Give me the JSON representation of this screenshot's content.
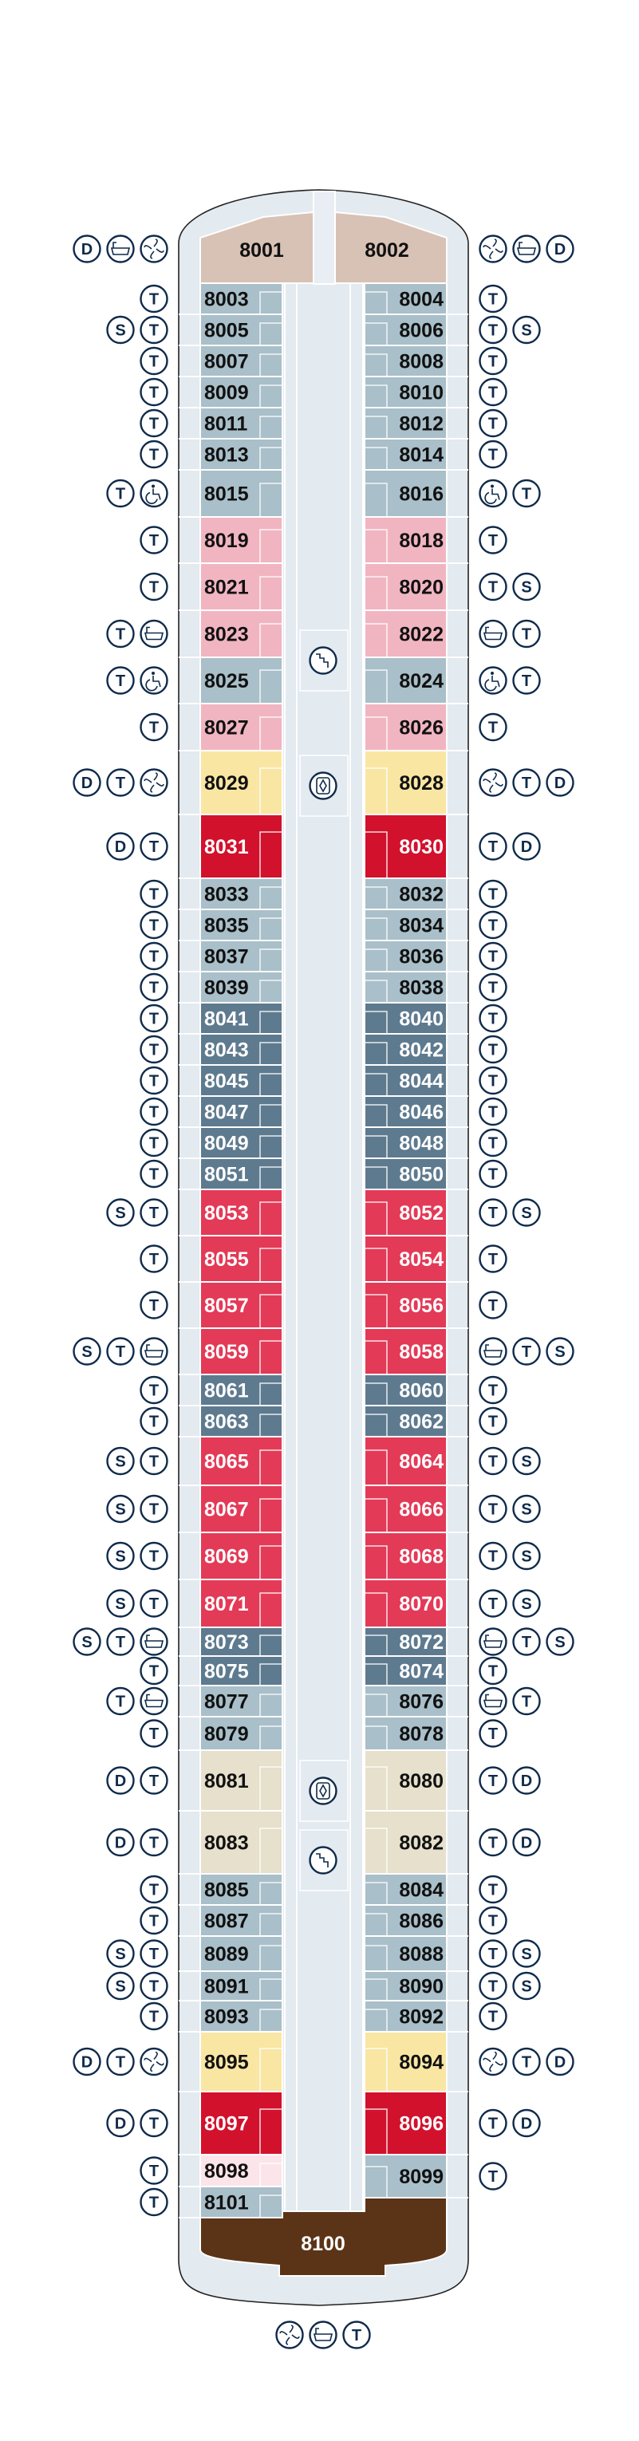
{
  "category_colors": {
    "tan": "#d8c2b5",
    "blue": "#a9bfc9",
    "pink": "#f1b5c2",
    "yellow": "#f9e6a3",
    "darkred": "#d2112d",
    "slate": "#5e7a8f",
    "red": "#e33a57",
    "beige": "#e6e0cc",
    "palepink": "#fbe4ea",
    "brown": "#5b3417",
    "hull": "#e3eaf0",
    "icon_stroke": "#0f2a4a"
  },
  "forward_suites": [
    {
      "cabin": "8001",
      "category": "tan",
      "icons": [
        "D",
        "bath",
        "spa"
      ]
    },
    {
      "cabin": "8002",
      "category": "tan",
      "icons": [
        "spa",
        "bath",
        "D"
      ]
    }
  ],
  "port_cabins": [
    {
      "cabin": "8003",
      "category": "blue",
      "icons": [
        "T"
      ]
    },
    {
      "cabin": "8005",
      "category": "blue",
      "icons": [
        "S",
        "T"
      ]
    },
    {
      "cabin": "8007",
      "category": "blue",
      "icons": [
        "T"
      ]
    },
    {
      "cabin": "8009",
      "category": "blue",
      "icons": [
        "T"
      ]
    },
    {
      "cabin": "8011",
      "category": "blue",
      "icons": [
        "T"
      ]
    },
    {
      "cabin": "8013",
      "category": "blue",
      "icons": [
        "T"
      ]
    },
    {
      "cabin": "8015",
      "category": "blue",
      "icons": [
        "T",
        "wheelchair"
      ]
    },
    {
      "cabin": "8019",
      "category": "pink",
      "icons": [
        "T"
      ]
    },
    {
      "cabin": "8021",
      "category": "pink",
      "icons": [
        "T"
      ]
    },
    {
      "cabin": "8023",
      "category": "pink",
      "icons": [
        "T",
        "bath"
      ]
    },
    {
      "cabin": "8025",
      "category": "blue",
      "icons": [
        "T",
        "wheelchair"
      ]
    },
    {
      "cabin": "8027",
      "category": "pink",
      "icons": [
        "T"
      ]
    },
    {
      "cabin": "8029",
      "category": "yellow",
      "icons": [
        "D",
        "T",
        "spa"
      ]
    },
    {
      "cabin": "8031",
      "category": "darkred",
      "icons": [
        "D",
        "T"
      ]
    },
    {
      "cabin": "8033",
      "category": "blue",
      "icons": [
        "T"
      ]
    },
    {
      "cabin": "8035",
      "category": "blue",
      "icons": [
        "T"
      ]
    },
    {
      "cabin": "8037",
      "category": "blue",
      "icons": [
        "T"
      ]
    },
    {
      "cabin": "8039",
      "category": "blue",
      "icons": [
        "T"
      ]
    },
    {
      "cabin": "8041",
      "category": "slate",
      "icons": [
        "T"
      ]
    },
    {
      "cabin": "8043",
      "category": "slate",
      "icons": [
        "T"
      ]
    },
    {
      "cabin": "8045",
      "category": "slate",
      "icons": [
        "T"
      ]
    },
    {
      "cabin": "8047",
      "category": "slate",
      "icons": [
        "T"
      ]
    },
    {
      "cabin": "8049",
      "category": "slate",
      "icons": [
        "T"
      ]
    },
    {
      "cabin": "8051",
      "category": "slate",
      "icons": [
        "T"
      ]
    },
    {
      "cabin": "8053",
      "category": "red",
      "icons": [
        "S",
        "T"
      ]
    },
    {
      "cabin": "8055",
      "category": "red",
      "icons": [
        "T"
      ]
    },
    {
      "cabin": "8057",
      "category": "red",
      "icons": [
        "T"
      ]
    },
    {
      "cabin": "8059",
      "category": "red",
      "icons": [
        "S",
        "T",
        "bath"
      ]
    },
    {
      "cabin": "8061",
      "category": "slate",
      "icons": [
        "T"
      ]
    },
    {
      "cabin": "8063",
      "category": "slate",
      "icons": [
        "T"
      ]
    },
    {
      "cabin": "8065",
      "category": "red",
      "icons": [
        "S",
        "T"
      ]
    },
    {
      "cabin": "8067",
      "category": "red",
      "icons": [
        "S",
        "T"
      ]
    },
    {
      "cabin": "8069",
      "category": "red",
      "icons": [
        "S",
        "T"
      ]
    },
    {
      "cabin": "8071",
      "category": "red",
      "icons": [
        "S",
        "T"
      ]
    },
    {
      "cabin": "8073",
      "category": "slate",
      "icons": [
        "S",
        "T",
        "bath"
      ]
    },
    {
      "cabin": "8075",
      "category": "slate",
      "icons": [
        "T"
      ]
    },
    {
      "cabin": "8077",
      "category": "blue",
      "icons": [
        "T",
        "bath"
      ]
    },
    {
      "cabin": "8079",
      "category": "blue",
      "icons": [
        "T"
      ]
    },
    {
      "cabin": "8081",
      "category": "beige",
      "icons": [
        "D",
        "T"
      ]
    },
    {
      "cabin": "8083",
      "category": "beige",
      "icons": [
        "D",
        "T"
      ]
    },
    {
      "cabin": "8085",
      "category": "blue",
      "icons": [
        "T"
      ]
    },
    {
      "cabin": "8087",
      "category": "blue",
      "icons": [
        "T"
      ]
    },
    {
      "cabin": "8089",
      "category": "blue",
      "icons": [
        "S",
        "T"
      ]
    },
    {
      "cabin": "8091",
      "category": "blue",
      "icons": [
        "S",
        "T"
      ]
    },
    {
      "cabin": "8093",
      "category": "blue",
      "icons": [
        "T"
      ]
    },
    {
      "cabin": "8095",
      "category": "yellow",
      "icons": [
        "D",
        "T",
        "spa"
      ]
    },
    {
      "cabin": "8097",
      "category": "darkred",
      "icons": [
        "D",
        "T"
      ]
    },
    {
      "cabin": "8098",
      "category": "palepink",
      "icons": [
        "T"
      ]
    },
    {
      "cabin": "8101",
      "category": "blue",
      "icons": [
        "T"
      ]
    }
  ],
  "starboard_cabins": [
    {
      "cabin": "8004",
      "category": "blue",
      "icons": [
        "T"
      ]
    },
    {
      "cabin": "8006",
      "category": "blue",
      "icons": [
        "T",
        "S"
      ]
    },
    {
      "cabin": "8008",
      "category": "blue",
      "icons": [
        "T"
      ]
    },
    {
      "cabin": "8010",
      "category": "blue",
      "icons": [
        "T"
      ]
    },
    {
      "cabin": "8012",
      "category": "blue",
      "icons": [
        "T"
      ]
    },
    {
      "cabin": "8014",
      "category": "blue",
      "icons": [
        "T"
      ]
    },
    {
      "cabin": "8016",
      "category": "blue",
      "icons": [
        "wheelchair",
        "T"
      ]
    },
    {
      "cabin": "8018",
      "category": "pink",
      "icons": [
        "T"
      ]
    },
    {
      "cabin": "8020",
      "category": "pink",
      "icons": [
        "T",
        "S"
      ]
    },
    {
      "cabin": "8022",
      "category": "pink",
      "icons": [
        "bath",
        "T"
      ]
    },
    {
      "cabin": "8024",
      "category": "blue",
      "icons": [
        "wheelchair",
        "T"
      ]
    },
    {
      "cabin": "8026",
      "category": "pink",
      "icons": [
        "T"
      ]
    },
    {
      "cabin": "8028",
      "category": "yellow",
      "icons": [
        "spa",
        "T",
        "D"
      ]
    },
    {
      "cabin": "8030",
      "category": "darkred",
      "icons": [
        "T",
        "D"
      ]
    },
    {
      "cabin": "8032",
      "category": "blue",
      "icons": [
        "T"
      ]
    },
    {
      "cabin": "8034",
      "category": "blue",
      "icons": [
        "T"
      ]
    },
    {
      "cabin": "8036",
      "category": "blue",
      "icons": [
        "T"
      ]
    },
    {
      "cabin": "8038",
      "category": "blue",
      "icons": [
        "T"
      ]
    },
    {
      "cabin": "8040",
      "category": "slate",
      "icons": [
        "T"
      ]
    },
    {
      "cabin": "8042",
      "category": "slate",
      "icons": [
        "T"
      ]
    },
    {
      "cabin": "8044",
      "category": "slate",
      "icons": [
        "T"
      ]
    },
    {
      "cabin": "8046",
      "category": "slate",
      "icons": [
        "T"
      ]
    },
    {
      "cabin": "8048",
      "category": "slate",
      "icons": [
        "T"
      ]
    },
    {
      "cabin": "8050",
      "category": "slate",
      "icons": [
        "T"
      ]
    },
    {
      "cabin": "8052",
      "category": "red",
      "icons": [
        "T",
        "S"
      ]
    },
    {
      "cabin": "8054",
      "category": "red",
      "icons": [
        "T"
      ]
    },
    {
      "cabin": "8056",
      "category": "red",
      "icons": [
        "T"
      ]
    },
    {
      "cabin": "8058",
      "category": "red",
      "icons": [
        "bath",
        "T",
        "S"
      ]
    },
    {
      "cabin": "8060",
      "category": "slate",
      "icons": [
        "T"
      ]
    },
    {
      "cabin": "8062",
      "category": "slate",
      "icons": [
        "T"
      ]
    },
    {
      "cabin": "8064",
      "category": "red",
      "icons": [
        "T",
        "S"
      ]
    },
    {
      "cabin": "8066",
      "category": "red",
      "icons": [
        "T",
        "S"
      ]
    },
    {
      "cabin": "8068",
      "category": "red",
      "icons": [
        "T",
        "S"
      ]
    },
    {
      "cabin": "8070",
      "category": "red",
      "icons": [
        "T",
        "S"
      ]
    },
    {
      "cabin": "8072",
      "category": "slate",
      "icons": [
        "bath",
        "T",
        "S"
      ]
    },
    {
      "cabin": "8074",
      "category": "slate",
      "icons": [
        "T"
      ]
    },
    {
      "cabin": "8076",
      "category": "blue",
      "icons": [
        "bath",
        "T"
      ]
    },
    {
      "cabin": "8078",
      "category": "blue",
      "icons": [
        "T"
      ]
    },
    {
      "cabin": "8080",
      "category": "beige",
      "icons": [
        "T",
        "D"
      ]
    },
    {
      "cabin": "8082",
      "category": "beige",
      "icons": [
        "T",
        "D"
      ]
    },
    {
      "cabin": "8084",
      "category": "blue",
      "icons": [
        "T"
      ]
    },
    {
      "cabin": "8086",
      "category": "blue",
      "icons": [
        "T"
      ]
    },
    {
      "cabin": "8088",
      "category": "blue",
      "icons": [
        "T",
        "S"
      ]
    },
    {
      "cabin": "8090",
      "category": "blue",
      "icons": [
        "T",
        "S"
      ]
    },
    {
      "cabin": "8092",
      "category": "blue",
      "icons": [
        "T"
      ]
    },
    {
      "cabin": "8094",
      "category": "yellow",
      "icons": [
        "spa",
        "T",
        "D"
      ]
    },
    {
      "cabin": "8096",
      "category": "darkred",
      "icons": [
        "T",
        "D"
      ]
    },
    {
      "cabin": "8099",
      "category": "blue",
      "icons": [
        "T"
      ]
    }
  ],
  "aft_suite": {
    "cabin": "8100",
    "category": "brown",
    "icons": [
      "spa",
      "bath",
      "T"
    ]
  },
  "central_features": [
    "stairs",
    "elevator",
    "elevator",
    "stairs"
  ]
}
